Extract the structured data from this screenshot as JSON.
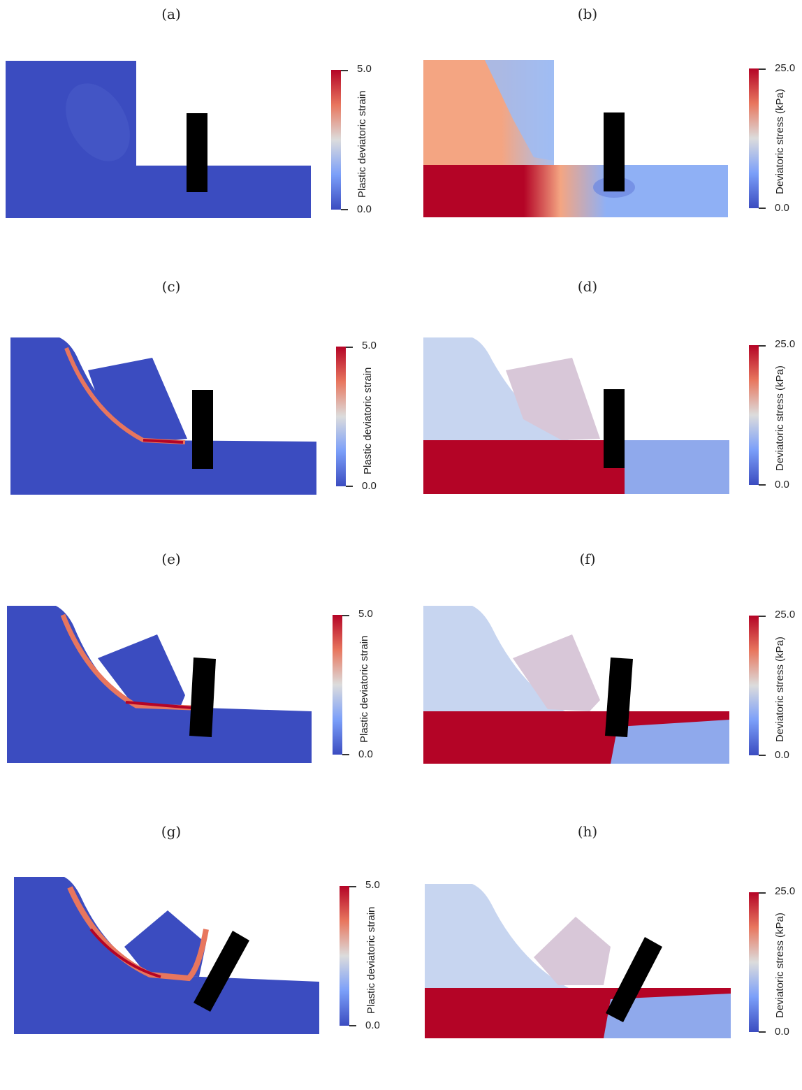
{
  "panels": {
    "a": {
      "caption": "(a)",
      "cbar_label": "Plastic deviatoric strain",
      "max": "5.0",
      "min": "0.0"
    },
    "b": {
      "caption": "(b)",
      "cbar_label": "Deviatoric stress (kPa)",
      "max": "25.0",
      "min": "0.0"
    },
    "c": {
      "caption": "(c)",
      "cbar_label": "Plastic deviatoric strain",
      "max": "5.0",
      "min": "0.0"
    },
    "d": {
      "caption": "(d)",
      "cbar_label": "Deviatoric stress (kPa)",
      "max": "25.0",
      "min": "0.0"
    },
    "e": {
      "caption": "(e)",
      "cbar_label": "Plastic deviatoric strain",
      "max": "5.0",
      "min": "0.0"
    },
    "f": {
      "caption": "(f)",
      "cbar_label": "Deviatoric stress (kPa)",
      "max": "25.0",
      "min": "0.0"
    },
    "g": {
      "caption": "(g)",
      "cbar_label": "Plastic deviatoric strain",
      "max": "5.0",
      "min": "0.0"
    },
    "h": {
      "caption": "(h)",
      "cbar_label": "Deviatoric stress (kPa)",
      "max": "25.0",
      "min": "0.0"
    }
  },
  "colors": {
    "low": "#3b4cc0",
    "mid": "#dcdcdc",
    "high": "#b40426",
    "salmon": "#f4a582",
    "pile": "#000000"
  }
}
